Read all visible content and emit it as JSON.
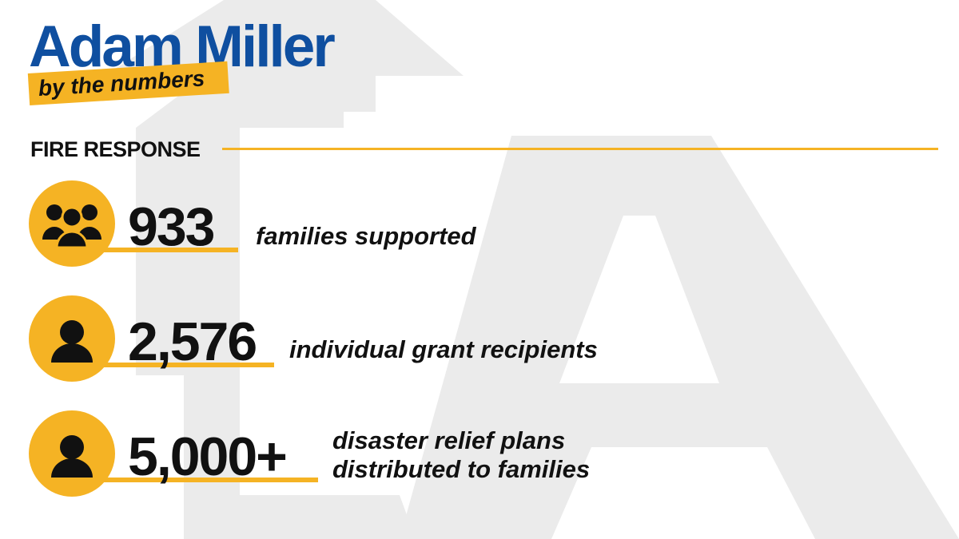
{
  "colors": {
    "title_blue": "#0f4fa0",
    "accent_yellow": "#f5b324",
    "text_black": "#111111",
    "watermark_gray": "#ebebeb"
  },
  "header": {
    "title": "Adam Miller",
    "tagline": "by the numbers"
  },
  "section": {
    "title": "FIRE RESPONSE"
  },
  "stats": [
    {
      "icon": "group-people-icon",
      "number": "933",
      "label_line1": "families supported",
      "label_line2": ""
    },
    {
      "icon": "person-icon",
      "number": "2,576",
      "label_line1": "individual grant recipients",
      "label_line2": ""
    },
    {
      "icon": "person-icon",
      "number": "5,000+",
      "label_line1": "disaster relief plans",
      "label_line2": "distributed to families"
    }
  ]
}
